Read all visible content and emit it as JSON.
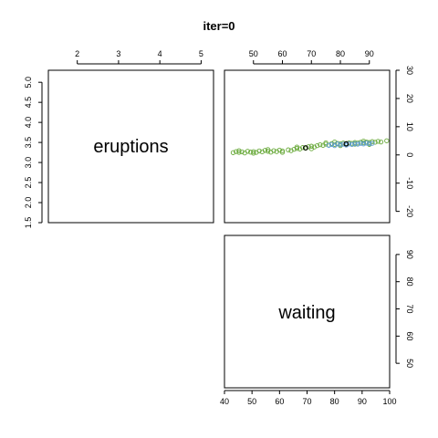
{
  "chart_data": {
    "type": "scatter",
    "title": "iter=0",
    "variables": [
      "eruptions",
      "waiting"
    ],
    "axes": {
      "eruptions_top": {
        "range": [
          1.3,
          5.3
        ],
        "ticks": [
          "2",
          "3",
          "4",
          "5"
        ],
        "values": [
          2,
          3,
          4,
          5
        ]
      },
      "eruptions_left": {
        "range": [
          1.5,
          5.3
        ],
        "ticks": [
          "1.5",
          "2.0",
          "2.5",
          "3.0",
          "3.5",
          "4.0",
          "4.5",
          "5.0"
        ],
        "values": [
          1.5,
          2.0,
          2.5,
          3.0,
          3.5,
          4.0,
          4.5,
          5.0
        ]
      },
      "waiting_top": {
        "range": [
          40,
          97
        ],
        "ticks": [
          "50",
          "60",
          "70",
          "80",
          "90"
        ],
        "values": [
          50,
          60,
          70,
          80,
          90
        ]
      },
      "residual_right": {
        "range": [
          -24,
          30
        ],
        "ticks": [
          "-20",
          "-10",
          "0",
          "10",
          "20",
          "30"
        ],
        "values": [
          -20,
          -10,
          0,
          10,
          20,
          30
        ]
      },
      "waiting_right": {
        "range": [
          41,
          97
        ],
        "ticks": [
          "50",
          "60",
          "70",
          "80",
          "90"
        ],
        "values": [
          50,
          60,
          70,
          80,
          90
        ]
      },
      "waiting_bottom": {
        "range": [
          40,
          100
        ],
        "ticks": [
          "40",
          "50",
          "60",
          "70",
          "80",
          "90",
          "100"
        ],
        "values": [
          40,
          50,
          60,
          70,
          80,
          90,
          100
        ]
      }
    },
    "colors": {
      "green": "#6aaa3c",
      "blue": "#5b9bd5",
      "center": "#000000"
    },
    "series": [
      {
        "color": "green",
        "points": [
          [
            43,
            0.8
          ],
          [
            44,
            1.2
          ],
          [
            45,
            0.9
          ],
          [
            46,
            1.1
          ],
          [
            47,
            0.7
          ],
          [
            48,
            1.3
          ],
          [
            49,
            1.0
          ],
          [
            50,
            1.2
          ],
          [
            51,
            0.9
          ],
          [
            52,
            1.4
          ],
          [
            53,
            1.1
          ],
          [
            54,
            1.6
          ],
          [
            55,
            1.3
          ],
          [
            56,
            1.0
          ],
          [
            57,
            1.5
          ],
          [
            58,
            1.2
          ],
          [
            59,
            1.7
          ],
          [
            60,
            1.4
          ],
          [
            62,
            1.8
          ],
          [
            63,
            1.5
          ],
          [
            64,
            2.0
          ],
          [
            65,
            2.3
          ],
          [
            66,
            2.1
          ],
          [
            67,
            2.6
          ],
          [
            68,
            2.4
          ],
          [
            69,
            2.9
          ],
          [
            70,
            3.1
          ],
          [
            71,
            2.8
          ],
          [
            72,
            3.3
          ],
          [
            73,
            3.6
          ],
          [
            74,
            3.4
          ],
          [
            75,
            3.8
          ],
          [
            76,
            3.5
          ],
          [
            77,
            4.0
          ],
          [
            78,
            3.7
          ],
          [
            79,
            4.1
          ],
          [
            80,
            3.9
          ],
          [
            81,
            4.2
          ],
          [
            82,
            4.0
          ],
          [
            83,
            4.3
          ],
          [
            84,
            4.1
          ],
          [
            85,
            4.4
          ],
          [
            86,
            4.2
          ],
          [
            87,
            4.5
          ],
          [
            88,
            4.3
          ],
          [
            89,
            4.6
          ],
          [
            90,
            4.4
          ],
          [
            91,
            4.7
          ],
          [
            92,
            4.5
          ],
          [
            93,
            4.8
          ],
          [
            94,
            4.6
          ],
          [
            96,
            5.0
          ],
          [
            45,
            1.5
          ],
          [
            50,
            0.6
          ],
          [
            55,
            1.9
          ],
          [
            60,
            0.9
          ],
          [
            65,
            2.8
          ],
          [
            70,
            2.2
          ],
          [
            75,
            4.3
          ],
          [
            78,
            4.6
          ],
          [
            80,
            3.3
          ],
          [
            85,
            3.8
          ],
          [
            88,
            4.9
          ],
          [
            90,
            3.7
          ]
        ]
      },
      {
        "color": "blue",
        "points": [
          [
            76,
            3.4
          ],
          [
            77,
            3.7
          ],
          [
            78,
            3.3
          ],
          [
            79,
            3.9
          ],
          [
            80,
            3.6
          ],
          [
            81,
            3.8
          ],
          [
            82,
            3.5
          ],
          [
            83,
            3.9
          ],
          [
            84,
            3.7
          ],
          [
            85,
            4.0
          ],
          [
            86,
            3.8
          ],
          [
            87,
            4.1
          ],
          [
            88,
            3.9
          ],
          [
            89,
            4.2
          ],
          [
            90,
            4.0
          ],
          [
            91,
            4.1
          ]
        ]
      },
      {
        "color": "center",
        "points": [
          [
            68,
            2.5
          ],
          [
            82,
            3.9
          ]
        ]
      }
    ]
  }
}
